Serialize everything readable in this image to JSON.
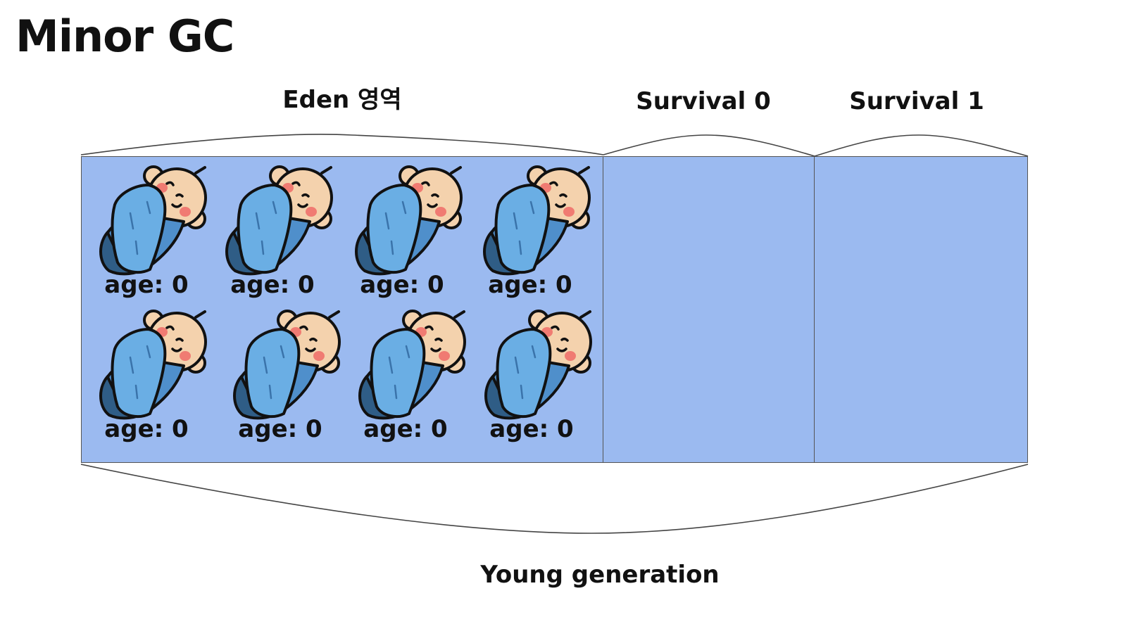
{
  "title": "Minor GC",
  "regions": {
    "eden": "Eden 영역",
    "survival0": "Survival 0",
    "survival1": "Survival 1"
  },
  "generation_label": "Young generation",
  "colors": {
    "region_fill": "#9bbaf0",
    "blanket": "#6aaee4",
    "blanket_dark": "#2f5d86",
    "skin": "#f4d2ad",
    "cheek": "#f07b72"
  },
  "objects": [
    {
      "icon": "sleeping-baby-icon",
      "age_label": "age: 0"
    },
    {
      "icon": "sleeping-baby-icon",
      "age_label": "age: 0"
    },
    {
      "icon": "sleeping-baby-icon",
      "age_label": "age: 0"
    },
    {
      "icon": "sleeping-baby-icon",
      "age_label": "age: 0"
    },
    {
      "icon": "sleeping-baby-icon",
      "age_label": "age: 0"
    },
    {
      "icon": "sleeping-baby-icon",
      "age_label": "age: 0"
    },
    {
      "icon": "sleeping-baby-icon",
      "age_label": "age: 0"
    },
    {
      "icon": "sleeping-baby-icon",
      "age_label": "age: 0"
    }
  ]
}
